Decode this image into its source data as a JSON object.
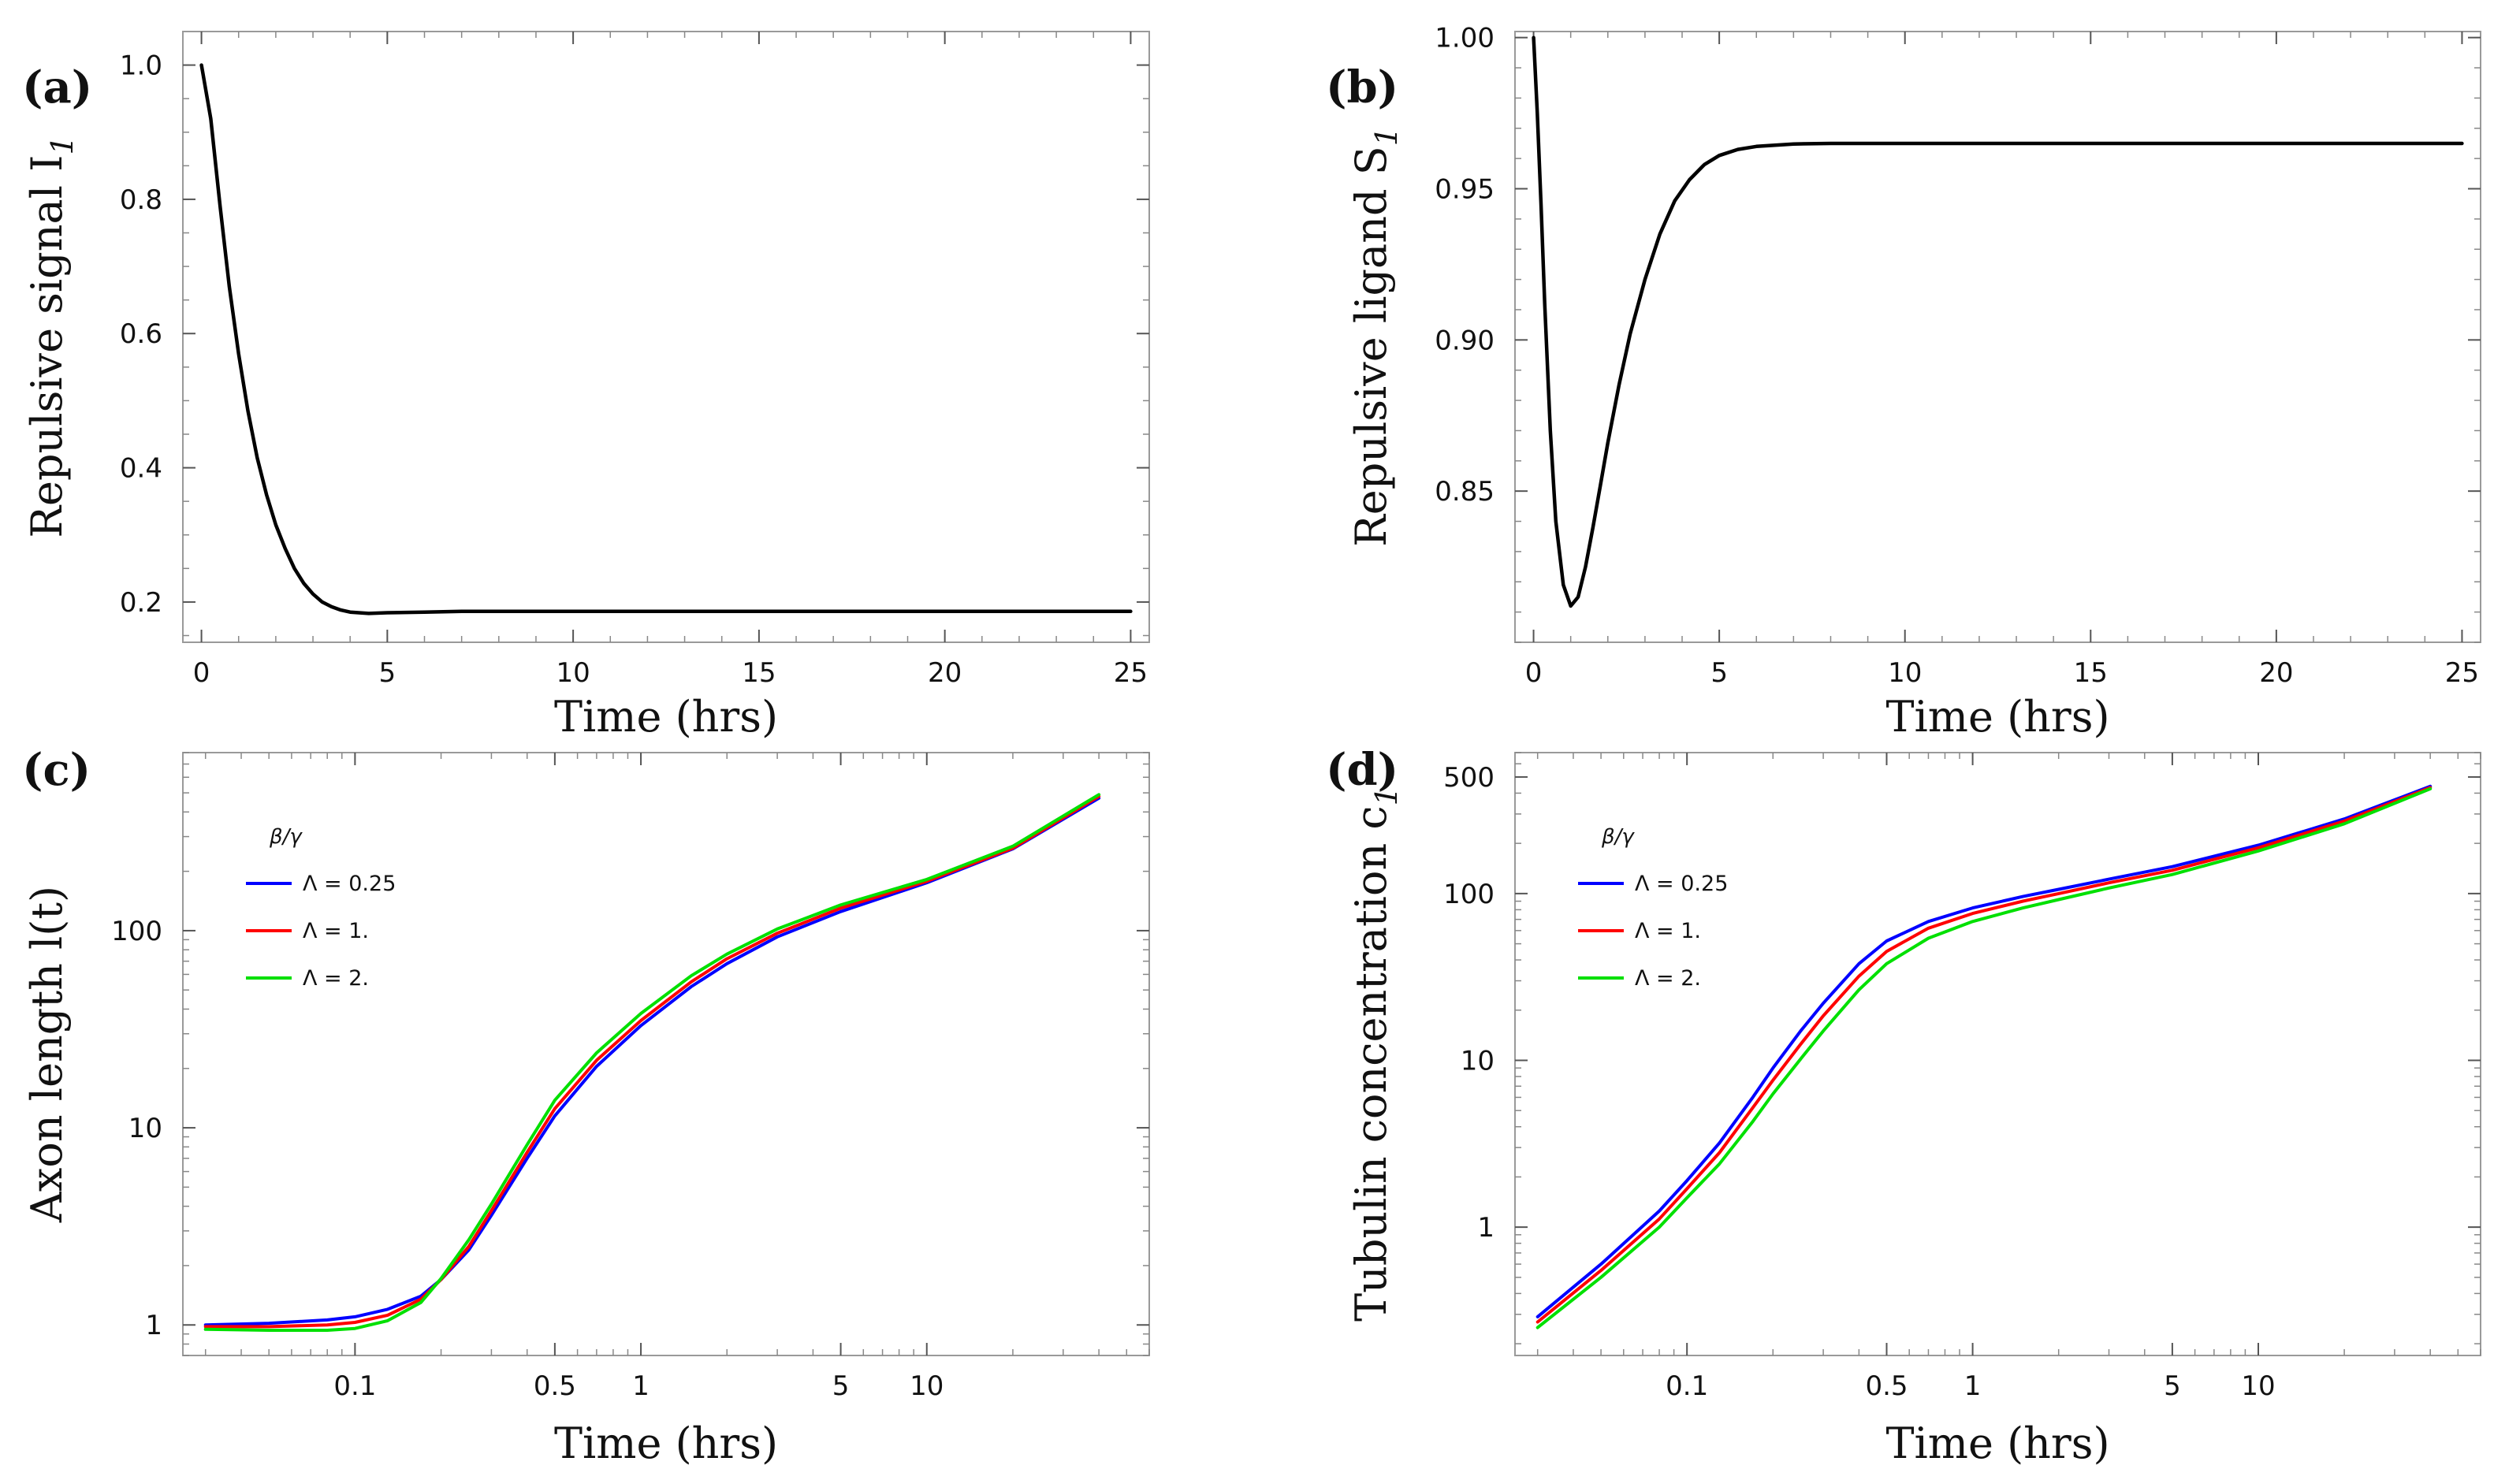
{
  "chart_data": [
    {
      "id": "a",
      "panel_label": "(a)",
      "type": "line",
      "xscale": "linear",
      "yscale": "linear",
      "xlim": [
        -0.5,
        25.5
      ],
      "ylim": [
        0.14,
        1.05
      ],
      "xticks": [
        0,
        5,
        10,
        15,
        20,
        25
      ],
      "xtick_labels": [
        "0",
        "5",
        "10",
        "15",
        "20",
        "25"
      ],
      "yticks": [
        0.2,
        0.4,
        0.6,
        0.8,
        1.0
      ],
      "ytick_labels": [
        "0.2",
        "0.4",
        "0.6",
        "0.8",
        "1.0"
      ],
      "xlabel": "Time (hrs)",
      "ylabel": "Repulsive signal I",
      "ylabel_sub": "1",
      "series": [
        {
          "name": "I1",
          "color": "#000000",
          "x": [
            0,
            0.25,
            0.5,
            0.75,
            1,
            1.25,
            1.5,
            1.75,
            2,
            2.25,
            2.5,
            2.75,
            3,
            3.25,
            3.5,
            3.75,
            4,
            4.5,
            5,
            6,
            7,
            8,
            10,
            12,
            15,
            20,
            25
          ],
          "y": [
            1.0,
            0.92,
            0.79,
            0.67,
            0.57,
            0.485,
            0.415,
            0.36,
            0.315,
            0.28,
            0.25,
            0.228,
            0.212,
            0.2,
            0.193,
            0.188,
            0.185,
            0.183,
            0.184,
            0.185,
            0.186,
            0.186,
            0.186,
            0.186,
            0.186,
            0.186,
            0.186
          ]
        }
      ]
    },
    {
      "id": "b",
      "panel_label": "(b)",
      "type": "line",
      "xscale": "linear",
      "yscale": "linear",
      "xlim": [
        -0.5,
        25.5
      ],
      "ylim": [
        0.8,
        1.002
      ],
      "xticks": [
        0,
        5,
        10,
        15,
        20,
        25
      ],
      "xtick_labels": [
        "0",
        "5",
        "10",
        "15",
        "20",
        "25"
      ],
      "yticks": [
        0.85,
        0.9,
        0.95,
        1.0
      ],
      "ytick_labels": [
        "0.85",
        "0.90",
        "0.95",
        "1.00"
      ],
      "xlabel": "Time (hrs)",
      "ylabel": "Repulsive ligand S",
      "ylabel_sub": "1",
      "series": [
        {
          "name": "S1",
          "color": "#000000",
          "x": [
            0,
            0.1,
            0.2,
            0.3,
            0.45,
            0.6,
            0.8,
            1.0,
            1.2,
            1.4,
            1.6,
            1.8,
            2.0,
            2.3,
            2.6,
            3.0,
            3.4,
            3.8,
            4.2,
            4.6,
            5.0,
            5.5,
            6.0,
            7.0,
            8.0,
            10,
            15,
            20,
            25
          ],
          "y": [
            1.0,
            0.975,
            0.945,
            0.912,
            0.87,
            0.84,
            0.819,
            0.812,
            0.815,
            0.825,
            0.838,
            0.852,
            0.866,
            0.885,
            0.902,
            0.92,
            0.935,
            0.946,
            0.953,
            0.958,
            0.961,
            0.963,
            0.964,
            0.9648,
            0.965,
            0.965,
            0.965,
            0.965,
            0.965
          ]
        }
      ]
    },
    {
      "id": "c",
      "panel_label": "(c)",
      "type": "line",
      "xscale": "log",
      "yscale": "log",
      "xlim": [
        0.025,
        60
      ],
      "ylim": [
        0.7,
        800
      ],
      "xticks": [
        0.1,
        0.5,
        1,
        5,
        10
      ],
      "xtick_labels": [
        "0.1",
        "0.5",
        "1",
        "5",
        "10"
      ],
      "yticks": [
        1,
        10,
        100
      ],
      "ytick_labels": [
        "1",
        "10",
        "100"
      ],
      "xlabel": "Time (hrs)",
      "ylabel": "Axon length  l(t)",
      "legend": {
        "title": "β/γ",
        "position": "top-left"
      },
      "series": [
        {
          "name": "Λ = 0.25",
          "color": "#0000ff",
          "x": [
            0.03,
            0.05,
            0.08,
            0.1,
            0.13,
            0.17,
            0.2,
            0.25,
            0.3,
            0.4,
            0.5,
            0.7,
            1,
            1.5,
            2,
            3,
            5,
            10,
            20,
            40
          ],
          "y": [
            1.0,
            1.02,
            1.06,
            1.1,
            1.2,
            1.4,
            1.7,
            2.4,
            3.6,
            7.0,
            11.5,
            20.5,
            33,
            52,
            68,
            93,
            125,
            175,
            260,
            470
          ]
        },
        {
          "name": "Λ = 1.",
          "color": "#ff0000",
          "x": [
            0.03,
            0.05,
            0.08,
            0.1,
            0.13,
            0.17,
            0.2,
            0.25,
            0.3,
            0.4,
            0.5,
            0.7,
            1,
            1.5,
            2,
            3,
            5,
            10,
            20,
            40
          ],
          "y": [
            0.98,
            0.98,
            1.0,
            1.03,
            1.12,
            1.35,
            1.7,
            2.5,
            3.8,
            7.5,
            12.5,
            22,
            35,
            55,
            72,
            97,
            130,
            178,
            262,
            480
          ]
        },
        {
          "name": "Λ = 2.",
          "color": "#00e000",
          "x": [
            0.03,
            0.05,
            0.08,
            0.1,
            0.13,
            0.17,
            0.2,
            0.25,
            0.3,
            0.4,
            0.5,
            0.7,
            1,
            1.5,
            2,
            3,
            5,
            10,
            20,
            40
          ],
          "y": [
            0.95,
            0.94,
            0.94,
            0.96,
            1.05,
            1.3,
            1.72,
            2.7,
            4.1,
            8.2,
            13.8,
            24,
            38,
            59,
            76,
            102,
            135,
            182,
            268,
            490
          ]
        }
      ]
    },
    {
      "id": "d",
      "panel_label": "(d)",
      "type": "line",
      "xscale": "log",
      "yscale": "log",
      "xlim": [
        0.025,
        60
      ],
      "ylim": [
        0.17,
        700
      ],
      "xticks": [
        0.1,
        0.5,
        1,
        5,
        10
      ],
      "xtick_labels": [
        "0.1",
        "0.5",
        "1",
        "5",
        "10"
      ],
      "yticks": [
        1,
        10,
        100,
        500
      ],
      "ytick_labels": [
        "1",
        "10",
        "100",
        "500"
      ],
      "xlabel": "Time (hrs)",
      "ylabel": "Tubulin concentration  c",
      "ylabel_sub": "1",
      "legend": {
        "title": "β/γ",
        "position": "top-left"
      },
      "series": [
        {
          "name": "Λ = 0.25",
          "color": "#0000ff",
          "x": [
            0.03,
            0.05,
            0.08,
            0.1,
            0.13,
            0.17,
            0.2,
            0.25,
            0.3,
            0.4,
            0.5,
            0.7,
            1,
            1.5,
            2,
            3,
            5,
            10,
            20,
            40
          ],
          "y": [
            0.29,
            0.6,
            1.25,
            1.9,
            3.2,
            6.0,
            9.0,
            15,
            22,
            38,
            52,
            68,
            82,
            96,
            106,
            122,
            145,
            195,
            280,
            440
          ]
        },
        {
          "name": "Λ = 1.",
          "color": "#ff0000",
          "x": [
            0.03,
            0.05,
            0.08,
            0.1,
            0.13,
            0.17,
            0.2,
            0.25,
            0.3,
            0.4,
            0.5,
            0.7,
            1,
            1.5,
            2,
            3,
            5,
            10,
            20,
            40
          ],
          "y": [
            0.27,
            0.55,
            1.12,
            1.7,
            2.8,
            5.2,
            7.6,
            12.5,
            18.5,
            32,
            45,
            62,
            76,
            90,
            100,
            116,
            138,
            188,
            272,
            432
          ]
        },
        {
          "name": "Λ = 2.",
          "color": "#00e000",
          "x": [
            0.03,
            0.05,
            0.08,
            0.1,
            0.13,
            0.17,
            0.2,
            0.25,
            0.3,
            0.4,
            0.5,
            0.7,
            1,
            1.5,
            2,
            3,
            5,
            10,
            20,
            40
          ],
          "y": [
            0.25,
            0.5,
            1.0,
            1.5,
            2.4,
            4.3,
            6.3,
            10.2,
            15,
            26.5,
            38,
            54,
            68,
            82,
            92,
            108,
            130,
            180,
            262,
            425
          ]
        }
      ]
    }
  ]
}
